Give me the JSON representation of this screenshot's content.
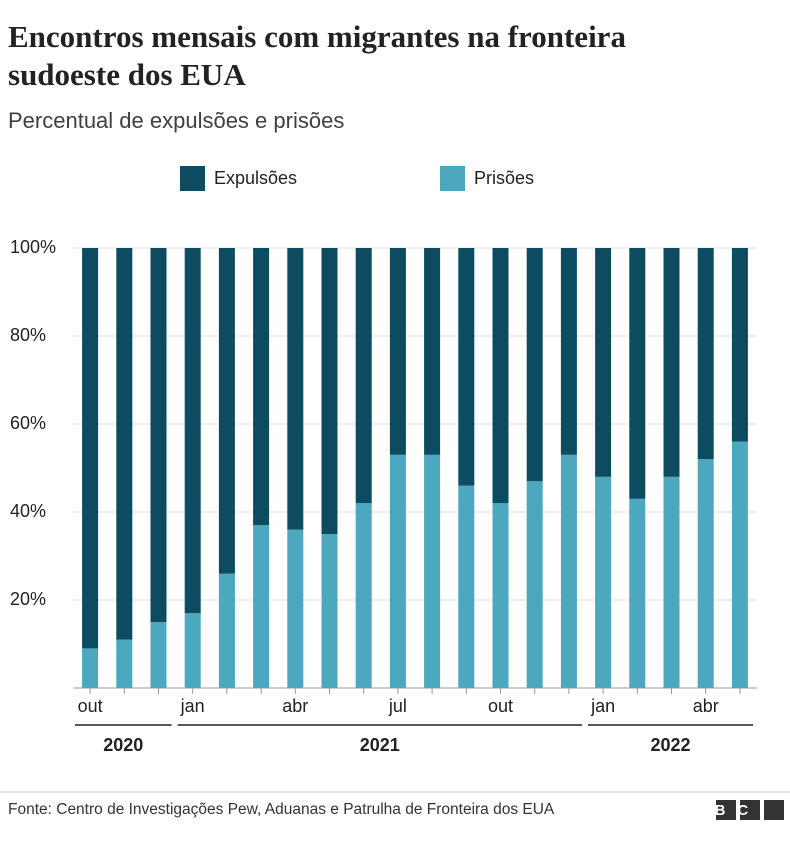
{
  "chart_data": {
    "type": "stacked_bar",
    "title": "Encontros mensais com migrantes na fronteira sudoeste dos EUA",
    "subtitle": "Percentual de expulsões e prisões",
    "categories": [
      "out",
      null,
      null,
      "jan",
      null,
      null,
      "abr",
      null,
      null,
      "jul",
      null,
      null,
      "out",
      null,
      null,
      "jan",
      null,
      null,
      "abr",
      null
    ],
    "x_groups": [
      "2020",
      "2021",
      "2022"
    ],
    "series": [
      {
        "name": "Expulsões",
        "color": "#0d4b60",
        "values": [
          91,
          89,
          85,
          83,
          74,
          63,
          64,
          65,
          58,
          47,
          47,
          54,
          58,
          53,
          47,
          52,
          57,
          52,
          48,
          44
        ]
      },
      {
        "name": "Prisões",
        "color": "#4ba8bf",
        "values": [
          9,
          11,
          15,
          17,
          26,
          37,
          36,
          35,
          42,
          53,
          53,
          46,
          42,
          47,
          53,
          48,
          43,
          48,
          52,
          56
        ]
      }
    ],
    "ylim": [
      0,
      100
    ],
    "yticks": [
      {
        "value": 20,
        "label": "20%"
      },
      {
        "value": 40,
        "label": "40%"
      },
      {
        "value": 60,
        "label": "60%"
      },
      {
        "value": 80,
        "label": "80%"
      },
      {
        "value": 100,
        "label": "100%"
      }
    ],
    "grid": true,
    "source": "Fonte: Centro de Investigações Pew, Aduanas e Patrulha de Fronteira dos EUA",
    "logo": "BBC"
  }
}
